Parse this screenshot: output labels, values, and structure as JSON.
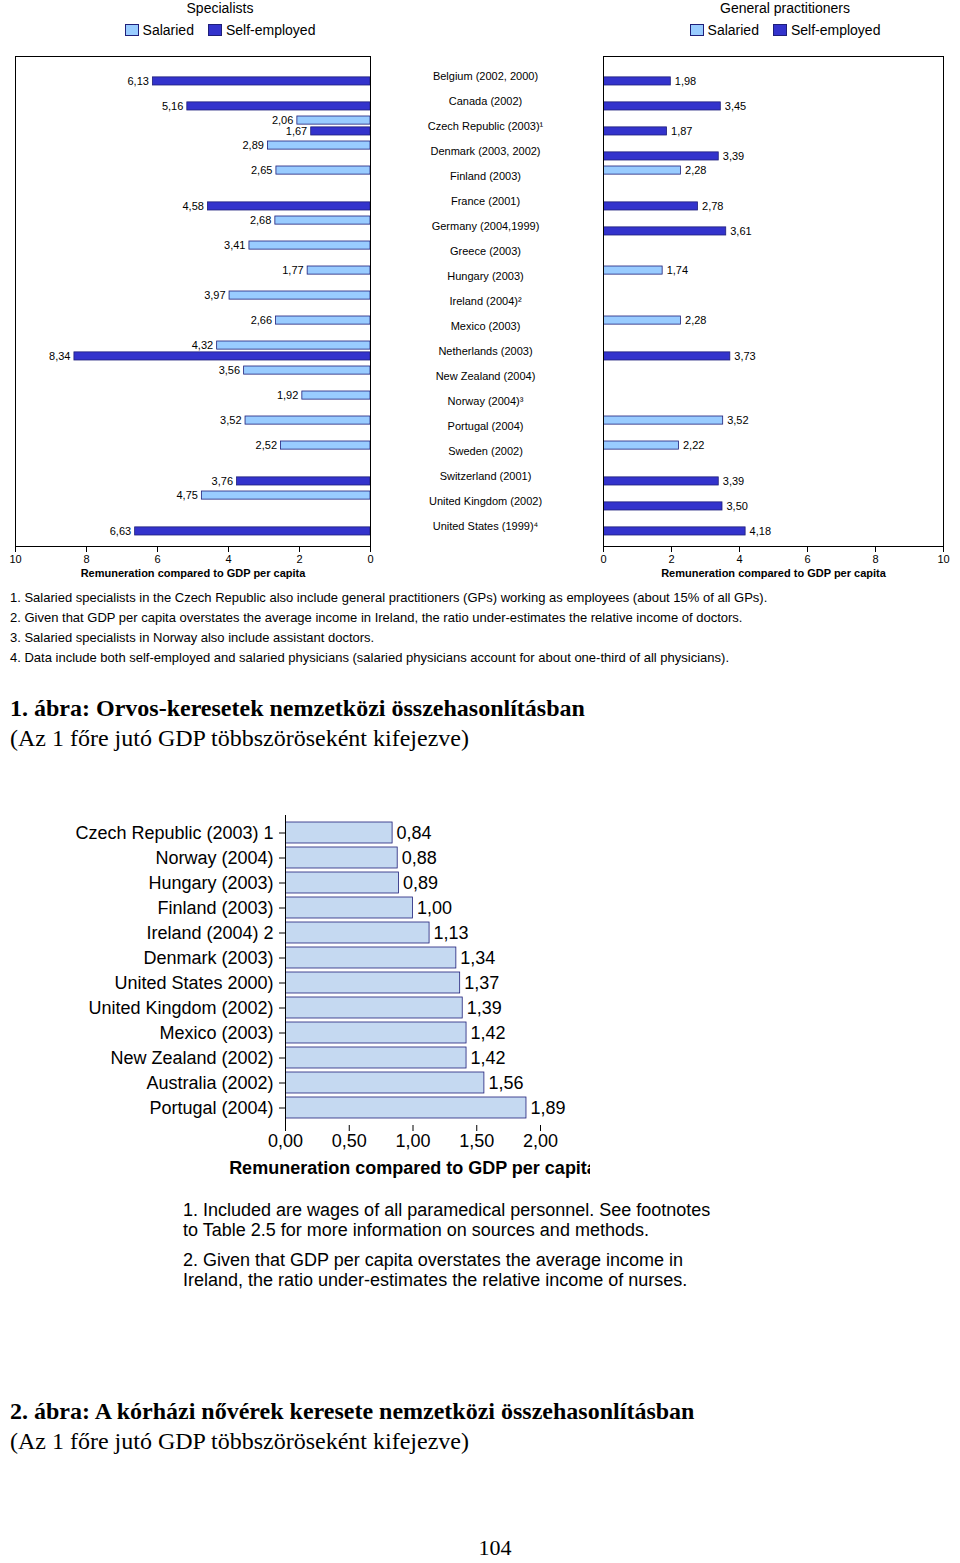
{
  "chart_data": [
    {
      "type": "bar",
      "orientation": "horizontal",
      "title": "Specialists",
      "categories": [
        "Belgium (2002, 2000)",
        "Canada (2002)",
        "Czech Republic (2003)¹",
        "Denmark (2003, 2002)",
        "Finland (2003)",
        "France (2001)",
        "Germany (2004,1999)",
        "Greece (2003)",
        "Hungary (2003)",
        "Ireland (2004)²",
        "Mexico (2003)",
        "Netherlands (2003)",
        "New Zealand (2004)",
        "Norway (2004)³",
        "Portugal (2004)",
        "Sweden (2002)",
        "Switzerland (2001)",
        "United Kingdom (2002)",
        "United States (1999)⁴"
      ],
      "series": [
        {
          "name": "Salaried",
          "color": "#99ccff",
          "values": [
            null,
            null,
            2.06,
            2.89,
            2.65,
            null,
            2.68,
            3.41,
            1.77,
            3.97,
            2.66,
            4.32,
            3.56,
            1.92,
            3.52,
            2.52,
            null,
            4.75,
            null
          ],
          "value_labels": [
            null,
            null,
            "2,06",
            "2,89",
            "2,65",
            null,
            "2,68",
            "3,41",
            "1,77",
            "3,97",
            "2,66",
            "4,32",
            "3,56",
            "1,92",
            "3,52",
            "2,52",
            null,
            "4,75",
            null
          ]
        },
        {
          "name": "Self-employed",
          "color": "#3333cc",
          "values": [
            6.13,
            5.16,
            1.67,
            null,
            null,
            4.58,
            null,
            null,
            null,
            null,
            null,
            8.34,
            null,
            null,
            null,
            null,
            3.76,
            null,
            6.63
          ],
          "value_labels": [
            "6,13",
            "5,16",
            "1,67",
            null,
            null,
            "4,58",
            null,
            null,
            null,
            null,
            null,
            "8,34",
            null,
            null,
            null,
            null,
            "3,76",
            null,
            "6,63"
          ]
        }
      ],
      "x_label": "Remuneration compared to GDP per capita",
      "xlim": [
        10,
        0
      ],
      "xticks": [
        10,
        8,
        6,
        4,
        2,
        0
      ],
      "legend": "top",
      "data_labels": true,
      "grid": false
    },
    {
      "type": "bar",
      "orientation": "horizontal",
      "title": "General practitioners",
      "categories": [
        "Belgium (2002, 2000)",
        "Canada (2002)",
        "Czech Republic (2003)¹",
        "Denmark (2003, 2002)",
        "Finland (2003)",
        "France (2001)",
        "Germany (2004,1999)",
        "Greece (2003)",
        "Hungary (2003)",
        "Ireland (2004)²",
        "Mexico (2003)",
        "Netherlands (2003)",
        "New Zealand (2004)",
        "Norway (2004)³",
        "Portugal (2004)",
        "Sweden (2002)",
        "Switzerland (2001)",
        "United Kingdom (2002)",
        "United States (1999)⁴"
      ],
      "series": [
        {
          "name": "Salaried",
          "color": "#99ccff",
          "values": [
            null,
            null,
            null,
            null,
            2.28,
            null,
            null,
            null,
            1.74,
            null,
            2.28,
            null,
            null,
            null,
            3.52,
            2.22,
            null,
            null,
            null
          ],
          "value_labels": [
            null,
            null,
            null,
            null,
            "2,28",
            null,
            null,
            null,
            "1,74",
            null,
            "2,28",
            null,
            null,
            null,
            "3,52",
            "2,22",
            null,
            null,
            null
          ]
        },
        {
          "name": "Self-employed",
          "color": "#3333cc",
          "values": [
            1.98,
            3.45,
            1.87,
            3.39,
            null,
            2.78,
            3.61,
            null,
            null,
            null,
            null,
            3.73,
            null,
            null,
            null,
            null,
            3.39,
            3.5,
            4.18
          ],
          "value_labels": [
            "1,98",
            "3,45",
            "1,87",
            "3,39",
            null,
            "2,78",
            "3,61",
            null,
            null,
            null,
            null,
            "3,73",
            null,
            null,
            null,
            null,
            "3,39",
            "3,50",
            "4,18"
          ]
        }
      ],
      "x_label": "Remuneration compared to GDP per capita",
      "xlim": [
        0,
        10
      ],
      "xticks": [
        0,
        2,
        4,
        6,
        8,
        10
      ],
      "legend": "top",
      "data_labels": true,
      "grid": false,
      "tick_labels": "x"
    },
    {
      "type": "bar",
      "orientation": "horizontal",
      "categories": [
        "Czech Republic (2003) 1",
        "Norway (2004)",
        "Hungary (2003)",
        "Finland (2003)",
        "Ireland (2004) 2",
        "Denmark (2003)",
        "United States 2000)",
        "United Kingdom (2002)",
        "Mexico (2003)",
        "New Zealand (2002)",
        "Australia (2002)",
        "Portugal (2004)"
      ],
      "values": [
        0.84,
        0.88,
        0.89,
        1.0,
        1.13,
        1.34,
        1.37,
        1.39,
        1.42,
        1.42,
        1.56,
        1.89
      ],
      "value_labels": [
        "0,84",
        "0,88",
        "0,89",
        "1,00",
        "1,13",
        "1,34",
        "1,37",
        "1,39",
        "1,42",
        "1,42",
        "1,56",
        "1,89"
      ],
      "color": "#c5d9f1",
      "x_label": "Remuneration compared to GDP per capita",
      "xlim": [
        0,
        2
      ],
      "xticks": [
        {
          "value": 0,
          "label": "0,00"
        },
        {
          "value": 0.5,
          "label": "0,50"
        },
        {
          "value": 1,
          "label": "1,00"
        },
        {
          "value": 1.5,
          "label": "1,50"
        },
        {
          "value": 2,
          "label": "2,00"
        }
      ],
      "data_labels": true,
      "grid": false
    }
  ],
  "figures": [
    {
      "caption": "1. ábra: Orvos-keresetek nemzetközi összehasonlításban",
      "subcaption": "(Az 1 főre jutó GDP többszöröseként kifejezve)",
      "notes": [
        "1. Salaried specialists in the Czech Republic also include general practitioners (GPs) working as employees (about 15% of all GPs).",
        "2. Given that GDP per capita overstates the average income in Ireland, the ratio under-estimates the relative income of doctors.",
        "3. Salaried specialists in Norway also include assistant doctors.",
        "4. Data include both self-employed and salaried physicians (salaried physicians account for about one-third of all physicians)."
      ]
    },
    {
      "caption": "2. ábra: A kórházi nővérek keresete nemzetközi összehasonlításban",
      "subcaption": "(Az 1 főre jutó GDP többszöröseként kifejezve)",
      "notes": [
        "1. Included are wages of all paramedical personnel. See footnotes to Table 2.5 for more information on sources and methods.",
        "2. Given that GDP per capita overstates the average income in Ireland, the ratio under-estimates the relative income of nurses."
      ]
    }
  ],
  "page_number": 104
}
